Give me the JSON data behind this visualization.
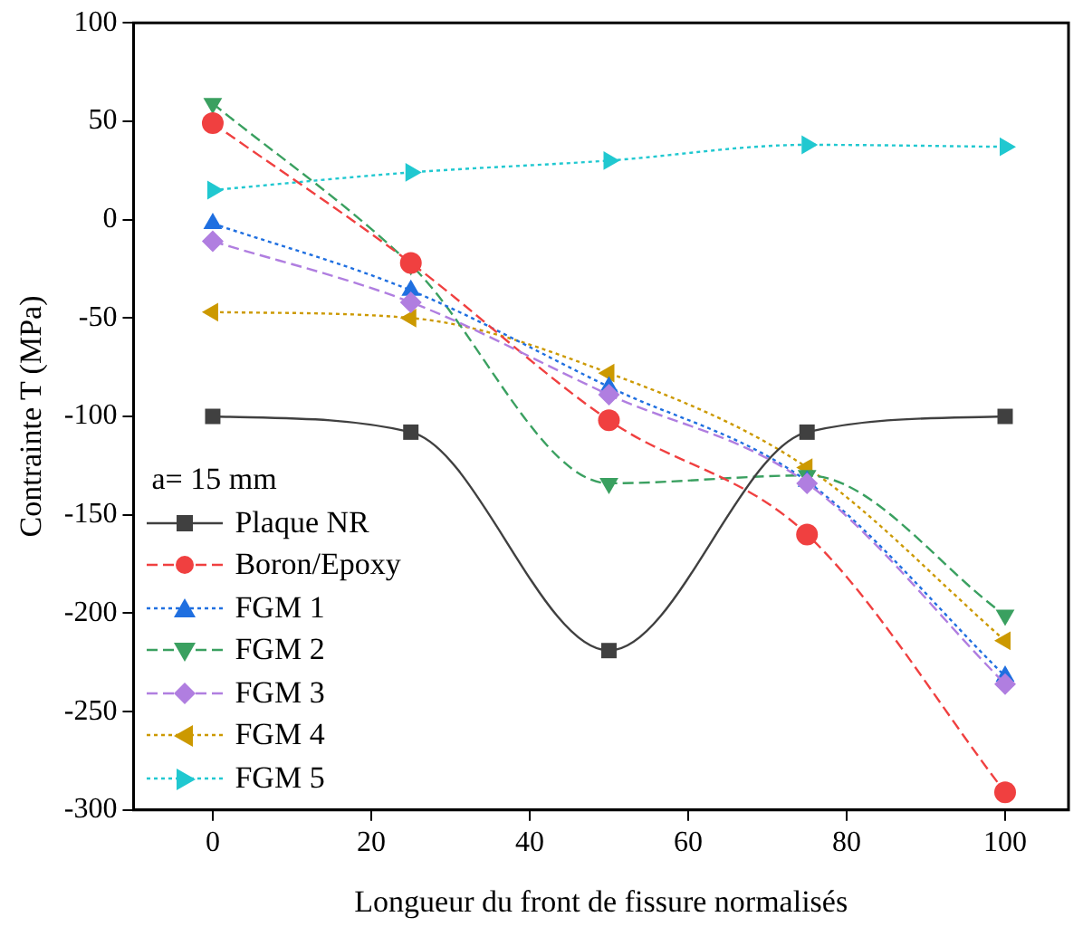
{
  "chart_data": {
    "type": "line",
    "xlabel": "Longueur du front de fissure normalisés",
    "ylabel": "Contrainte T (MPa)",
    "legend_title": "a= 15 mm",
    "x": [
      0,
      25,
      50,
      75,
      100
    ],
    "xlim": [
      -10,
      108
    ],
    "xticks": [
      0,
      20,
      40,
      60,
      80,
      100
    ],
    "ylim": [
      -300,
      100
    ],
    "yticks": [
      -300,
      -250,
      -200,
      -150,
      -100,
      -50,
      0,
      50,
      100
    ],
    "grid": false,
    "legend": "bottom left",
    "series": [
      {
        "name": "Plaque NR",
        "color": "#404040",
        "marker": "square",
        "line_style": "solid",
        "values": [
          -100,
          -108,
          -219,
          -108,
          -100
        ]
      },
      {
        "name": "Boron/Epoxy",
        "color": "#f04040",
        "marker": "circle",
        "line_style": "dashed",
        "values": [
          49,
          -22,
          -102,
          -160,
          -291
        ]
      },
      {
        "name": "FGM 1",
        "color": "#1f6fe0",
        "marker": "triangle",
        "line_style": "dotted",
        "values": [
          -2,
          -36,
          -85,
          -133,
          -232
        ]
      },
      {
        "name": "FGM 2",
        "color": "#3aa060",
        "marker": "triangle-down",
        "line_style": "dashed",
        "values": [
          59,
          -23,
          -134,
          -130,
          -201
        ]
      },
      {
        "name": "FGM 3",
        "color": "#b07ee0",
        "marker": "diamond",
        "line_style": "dashed",
        "values": [
          -11,
          -42,
          -89,
          -134,
          -236
        ]
      },
      {
        "name": "FGM 4",
        "color": "#cc9900",
        "marker": "triangle-left",
        "line_style": "dotted",
        "values": [
          -47,
          -50,
          -78,
          -126,
          -214
        ]
      },
      {
        "name": "FGM 5",
        "color": "#20c8d0",
        "marker": "triangle-right",
        "line_style": "dotted",
        "values": [
          15,
          24,
          30,
          38,
          37
        ]
      }
    ]
  }
}
